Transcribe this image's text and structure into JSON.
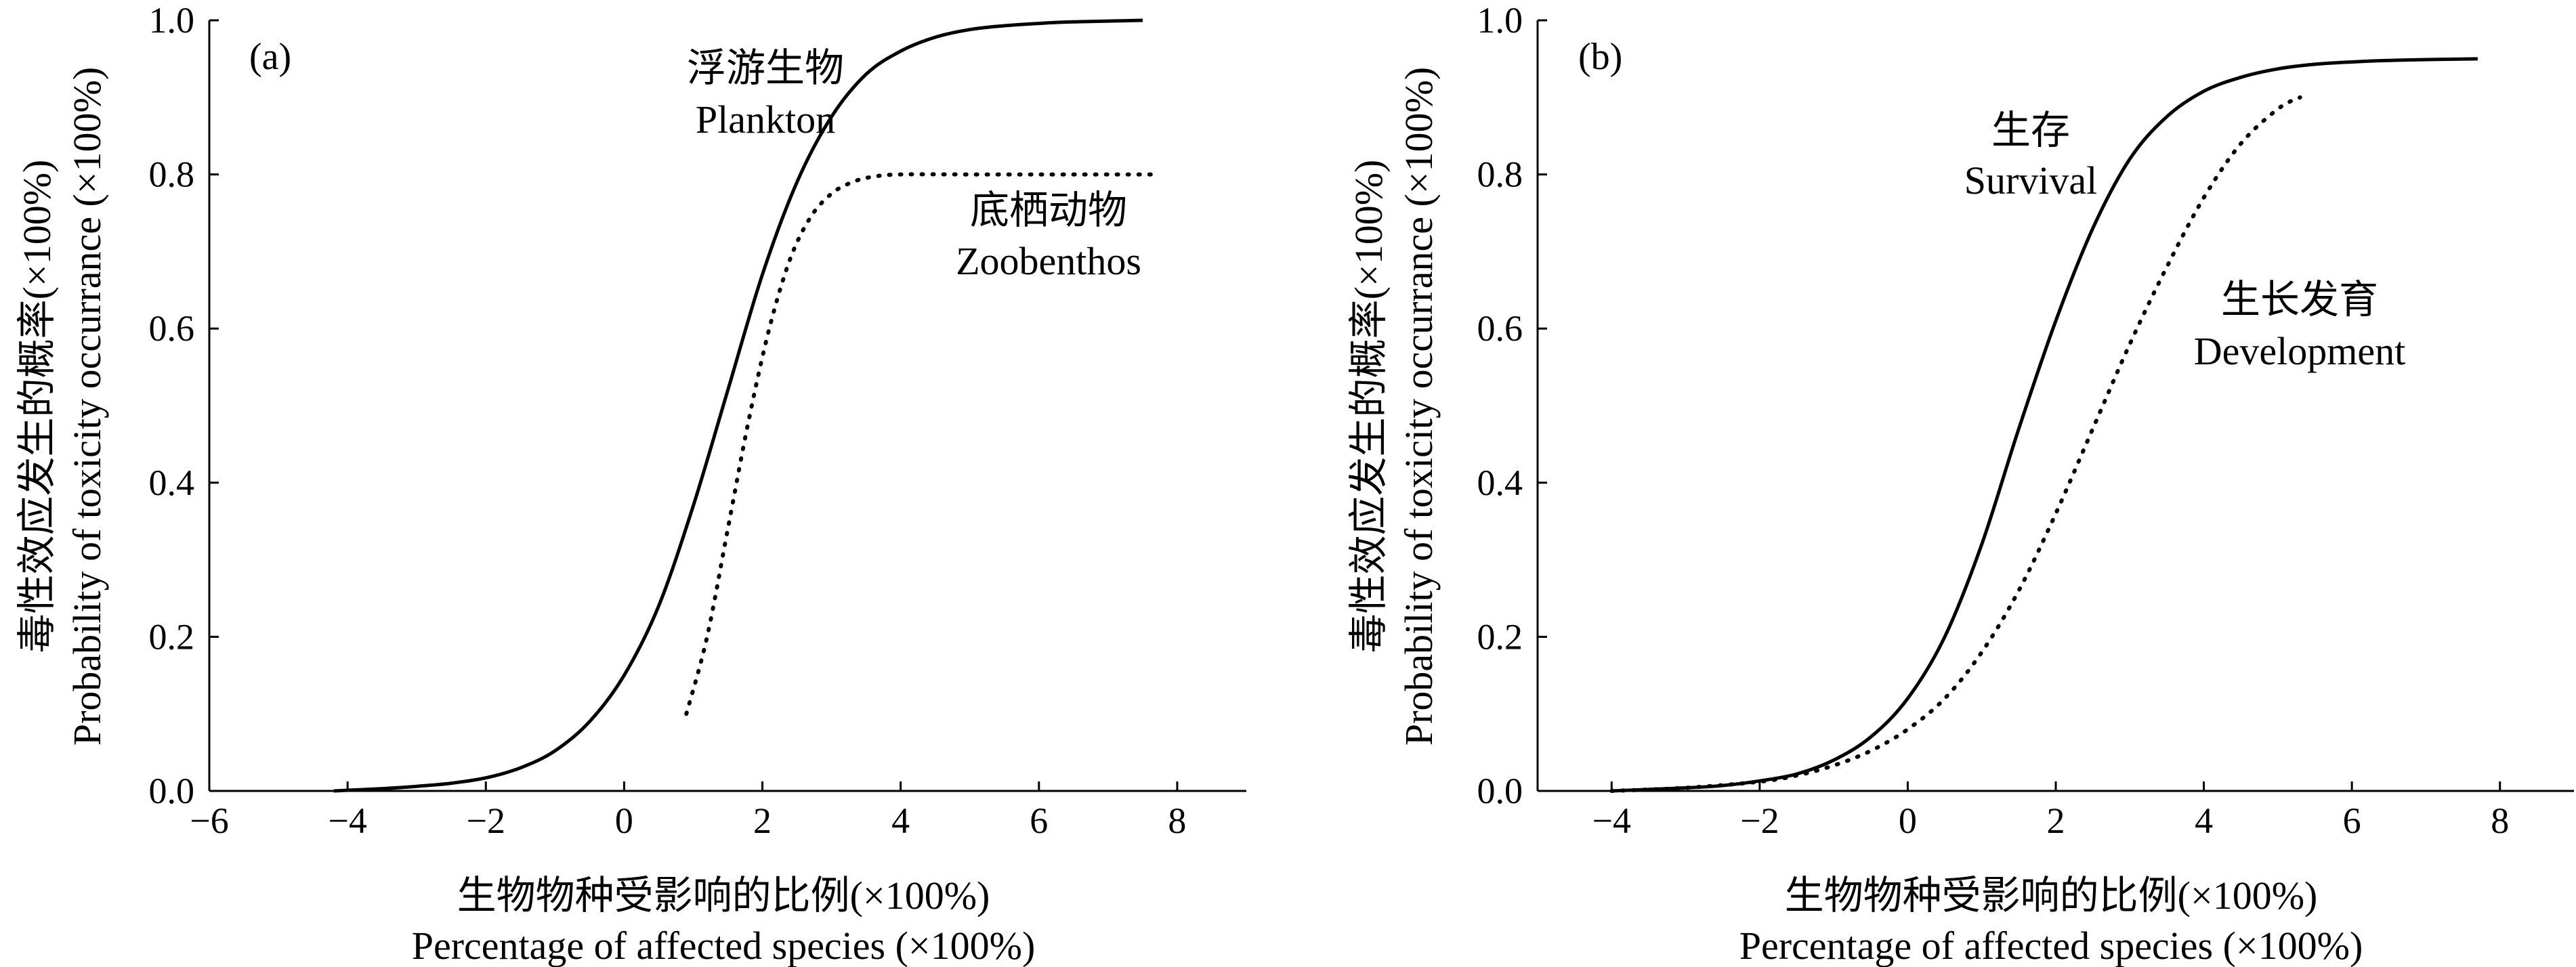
{
  "chart_data": [
    {
      "type": "line",
      "panel_label": "(a)",
      "xlabel_cn": "生物物种受影响的比例(×100%)",
      "xlabel_en": "Percentage of affected species (×100%)",
      "ylabel_cn": "毒性效应发生的概率(×100%)",
      "ylabel_en": "Probability of toxicity occurrance (×100%)",
      "xlim": [
        -6,
        9
      ],
      "ylim": [
        0,
        1.0
      ],
      "xticks": [
        -6,
        -4,
        -2,
        0,
        2,
        4,
        6,
        8
      ],
      "xtick_labels": [
        "−6",
        "−4",
        "−2",
        "0",
        "2",
        "4",
        "6",
        "8"
      ],
      "yticks": [
        0,
        0.2,
        0.4,
        0.6,
        0.8,
        1.0
      ],
      "ytick_labels": [
        "0.0",
        "0.2",
        "0.4",
        "0.6",
        "0.8",
        "1.0"
      ],
      "grid": false,
      "series": [
        {
          "name_cn": "浮游生物",
          "name_en": "Plankton",
          "style": "solid",
          "color": "#000000",
          "x": [
            -4.2,
            -3.5,
            -3.0,
            -2.5,
            -2.0,
            -1.5,
            -1.0,
            -0.5,
            0.0,
            0.5,
            1.0,
            1.5,
            2.0,
            2.5,
            3.0,
            3.5,
            4.0,
            4.5,
            5.0,
            5.5,
            6.0,
            6.5,
            7.0,
            7.5
          ],
          "y": [
            0.0,
            0.003,
            0.006,
            0.01,
            0.017,
            0.03,
            0.052,
            0.09,
            0.15,
            0.24,
            0.37,
            0.52,
            0.67,
            0.79,
            0.875,
            0.93,
            0.96,
            0.978,
            0.988,
            0.993,
            0.996,
            0.998,
            0.999,
            1.0
          ]
        },
        {
          "name_cn": "底栖动物",
          "name_en": "Zoobenthos",
          "style": "dotted",
          "color": "#000000",
          "x": [
            0.9,
            1.2,
            1.5,
            1.8,
            2.1,
            2.4,
            2.7,
            3.0,
            3.3,
            3.6,
            4.0,
            5.0,
            6.0,
            7.0,
            7.7
          ],
          "y": [
            0.1,
            0.2,
            0.34,
            0.48,
            0.6,
            0.69,
            0.745,
            0.775,
            0.79,
            0.797,
            0.8,
            0.8,
            0.8,
            0.8,
            0.8
          ]
        }
      ],
      "annotations": [
        {
          "series": 0,
          "line1": "浮游生物",
          "line2": "Plankton"
        },
        {
          "series": 1,
          "line1": "底栖动物",
          "line2": "Zoobenthos"
        }
      ]
    },
    {
      "type": "line",
      "panel_label": "(b)",
      "xlabel_cn": "生物物种受影响的比例(×100%)",
      "xlabel_en": "Percentage of affected species (×100%)",
      "ylabel_cn": "毒性效应发生的概率(×100%)",
      "ylabel_en": "Probability of toxicity occurrance (×100%)",
      "xlim": [
        -5,
        9
      ],
      "ylim": [
        0,
        1.0
      ],
      "xticks": [
        -4,
        -2,
        0,
        2,
        4,
        6,
        8
      ],
      "xtick_labels": [
        "−4",
        "−2",
        "0",
        "2",
        "4",
        "6",
        "8"
      ],
      "yticks": [
        0,
        0.2,
        0.4,
        0.6,
        0.8,
        1.0
      ],
      "ytick_labels": [
        "0.0",
        "0.2",
        "0.4",
        "0.6",
        "0.8",
        "1.0"
      ],
      "grid": false,
      "series": [
        {
          "name_cn": "生存",
          "name_en": "Survival",
          "style": "solid",
          "color": "#000000",
          "x": [
            -4.0,
            -3.5,
            -3.0,
            -2.5,
            -2.0,
            -1.5,
            -1.0,
            -0.5,
            0.0,
            0.5,
            1.0,
            1.5,
            2.0,
            2.5,
            3.0,
            3.5,
            4.0,
            4.5,
            5.0,
            5.5,
            6.0,
            6.5,
            7.0,
            7.7
          ],
          "y": [
            0.0,
            0.002,
            0.004,
            0.007,
            0.013,
            0.022,
            0.04,
            0.07,
            0.12,
            0.2,
            0.32,
            0.47,
            0.61,
            0.73,
            0.82,
            0.875,
            0.908,
            0.926,
            0.937,
            0.943,
            0.946,
            0.948,
            0.949,
            0.95
          ]
        },
        {
          "name_cn": "生长发育",
          "name_en": "Development",
          "style": "dotted",
          "color": "#000000",
          "x": [
            -4.0,
            -3.0,
            -2.0,
            -1.5,
            -1.0,
            -0.5,
            0.0,
            0.5,
            1.0,
            1.5,
            2.0,
            2.5,
            3.0,
            3.5,
            4.0,
            4.5,
            5.0,
            5.3
          ],
          "y": [
            0.0,
            0.004,
            0.012,
            0.02,
            0.033,
            0.052,
            0.08,
            0.12,
            0.18,
            0.26,
            0.36,
            0.47,
            0.58,
            0.68,
            0.77,
            0.84,
            0.885,
            0.9
          ]
        }
      ],
      "annotations": [
        {
          "series": 0,
          "line1": "生存",
          "line2": "Survival"
        },
        {
          "series": 1,
          "line1": "生长发育",
          "line2": "Development"
        }
      ]
    }
  ]
}
